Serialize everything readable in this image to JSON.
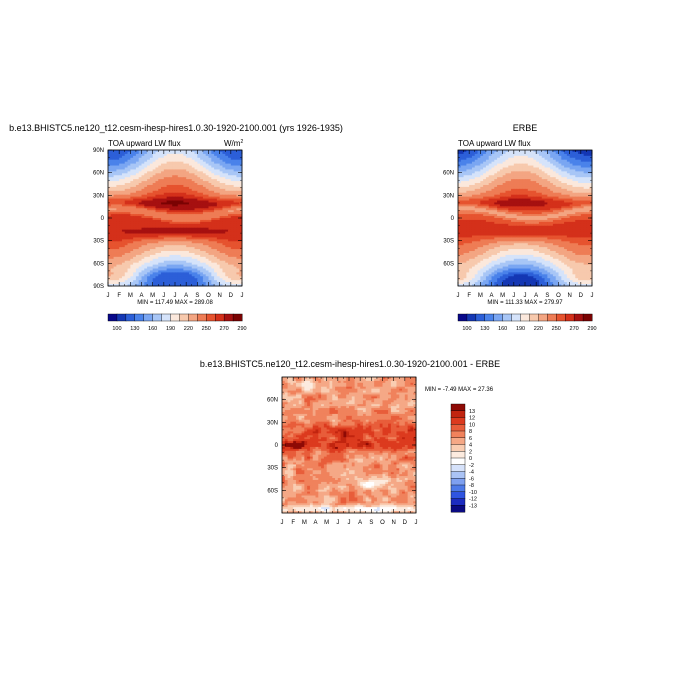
{
  "panels": [
    {
      "title": "b.e13.BHISTC5.ne120_t12.cesm-ihesp-hires1.0.30-1920-2100.001 (yrs 1926-1935)",
      "subtitle": "TOA upward LW flux",
      "units": "W/m",
      "units_sup": "2",
      "minmax": "MIN = 117.49 MAX = 289.08"
    },
    {
      "title": "ERBE",
      "subtitle": "TOA upward LW flux",
      "minmax": "MIN = 111.33 MAX = 279.97"
    },
    {
      "title": "b.e13.BHISTC5.ne120_t12.cesm-ihesp-hires1.0.30-1920-2100.001 - ERBE",
      "minmax": "MIN = -7.49 MAX = 27.36"
    }
  ],
  "colors": {
    "abs": [
      "#08088a",
      "#1437b4",
      "#2c5fd8",
      "#4a82ea",
      "#7aa6f2",
      "#a8c6f6",
      "#d5e3fa",
      "#fbe8dc",
      "#f7c9ad",
      "#f3a582",
      "#ee7c55",
      "#e6532f",
      "#d4301a",
      "#a61010",
      "#7a0303"
    ],
    "diff": [
      "#0a0a82",
      "#1c2cc0",
      "#2f54e0",
      "#4d7ae8",
      "#7ea0f0",
      "#aac3f5",
      "#d6e2fa",
      "#ffffff",
      "#fcebdf",
      "#f9cdb2",
      "#f5a886",
      "#f0825c",
      "#e85d3a",
      "#dc3a1e",
      "#c1240f",
      "#8e0a05"
    ]
  },
  "chart_data": [
    {
      "type": "heatmap",
      "x_ticks": [
        "J",
        "F",
        "M",
        "A",
        "M",
        "J",
        "J",
        "A",
        "S",
        "O",
        "N",
        "D",
        "J"
      ],
      "y_ticks": [
        "90N",
        "60N",
        "30N",
        "0",
        "30S",
        "60S",
        "90S"
      ],
      "colorbar_labels": [
        "100",
        "130",
        "160",
        "190",
        "220",
        "250",
        "270",
        "290"
      ],
      "levels": [
        100,
        115,
        130,
        145,
        160,
        175,
        190,
        205,
        220,
        235,
        250,
        260,
        270,
        280,
        290
      ],
      "zmin": 117.49,
      "zmax": 289.08
    },
    {
      "type": "heatmap",
      "x_ticks": [
        "J",
        "F",
        "M",
        "A",
        "M",
        "J",
        "J",
        "A",
        "S",
        "O",
        "N",
        "D",
        "J"
      ],
      "y_ticks": [
        "60N",
        "30N",
        "0",
        "30S",
        "60S"
      ],
      "colorbar_labels": [
        "100",
        "130",
        "160",
        "190",
        "220",
        "250",
        "270",
        "290"
      ],
      "levels": [
        100,
        115,
        130,
        145,
        160,
        175,
        190,
        205,
        220,
        235,
        250,
        260,
        270,
        280,
        290
      ],
      "zmin": 111.33,
      "zmax": 279.97
    },
    {
      "type": "heatmap",
      "x_ticks": [
        "J",
        "F",
        "M",
        "A",
        "M",
        "J",
        "J",
        "A",
        "S",
        "O",
        "N",
        "D",
        "J"
      ],
      "y_ticks": [
        "60N",
        "30N",
        "0",
        "30S",
        "60S"
      ],
      "colorbar_labels": [
        "13",
        "12",
        "10",
        "8",
        "6",
        "4",
        "2",
        "0",
        "-2",
        "-4",
        "-6",
        "-8",
        "-10",
        "-12",
        "-13"
      ],
      "levels": [
        -13,
        -12,
        -10,
        -8,
        -6,
        -4,
        -2,
        0,
        2,
        4,
        6,
        8,
        10,
        12,
        13
      ],
      "zmin": -7.49,
      "zmax": 27.36
    }
  ]
}
